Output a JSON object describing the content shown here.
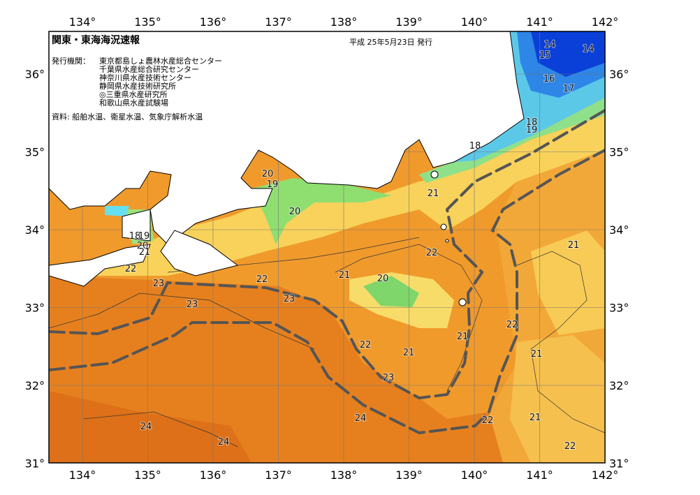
{
  "header": {
    "title": "関東・東海海況速報",
    "date": "平成 25年5月23日 発行",
    "issuer_label": "発行機関：",
    "issuers": [
      "東京都島しょ農林水産総合センター",
      "千葉県水産総合研究センター",
      "神奈川県水産技術センター",
      "静岡県水産技術研究所",
      "◎三重県水産研究所",
      "和歌山県水産試験場"
    ],
    "source": "資料: 船舶水温、衛星水温、気象庁解析水温"
  },
  "map": {
    "lon_ticks": [
      {
        "value": 134,
        "label": "134°"
      },
      {
        "value": 135,
        "label": "135°"
      },
      {
        "value": 136,
        "label": "136°"
      },
      {
        "value": 137,
        "label": "137°"
      },
      {
        "value": 138,
        "label": "138°"
      },
      {
        "value": 139,
        "label": "139°"
      },
      {
        "value": 140,
        "label": "140°"
      },
      {
        "value": 141,
        "label": "141°"
      },
      {
        "value": 142,
        "label": "142°"
      }
    ],
    "lat_ticks": [
      {
        "value": 36,
        "label": "36°"
      },
      {
        "value": 35,
        "label": "35°"
      },
      {
        "value": 34,
        "label": "34°"
      },
      {
        "value": 33,
        "label": "33°"
      },
      {
        "value": 32,
        "label": "32°"
      },
      {
        "value": 31,
        "label": "31°"
      }
    ],
    "contour_labels": [
      14,
      15,
      14,
      16,
      17,
      18,
      19,
      18,
      20,
      19,
      21,
      20,
      18,
      19,
      20,
      21,
      22,
      21,
      22,
      22,
      21,
      20,
      23,
      23,
      23,
      22,
      21,
      22,
      21,
      21,
      23,
      24,
      22,
      21,
      24,
      24,
      22
    ]
  }
}
